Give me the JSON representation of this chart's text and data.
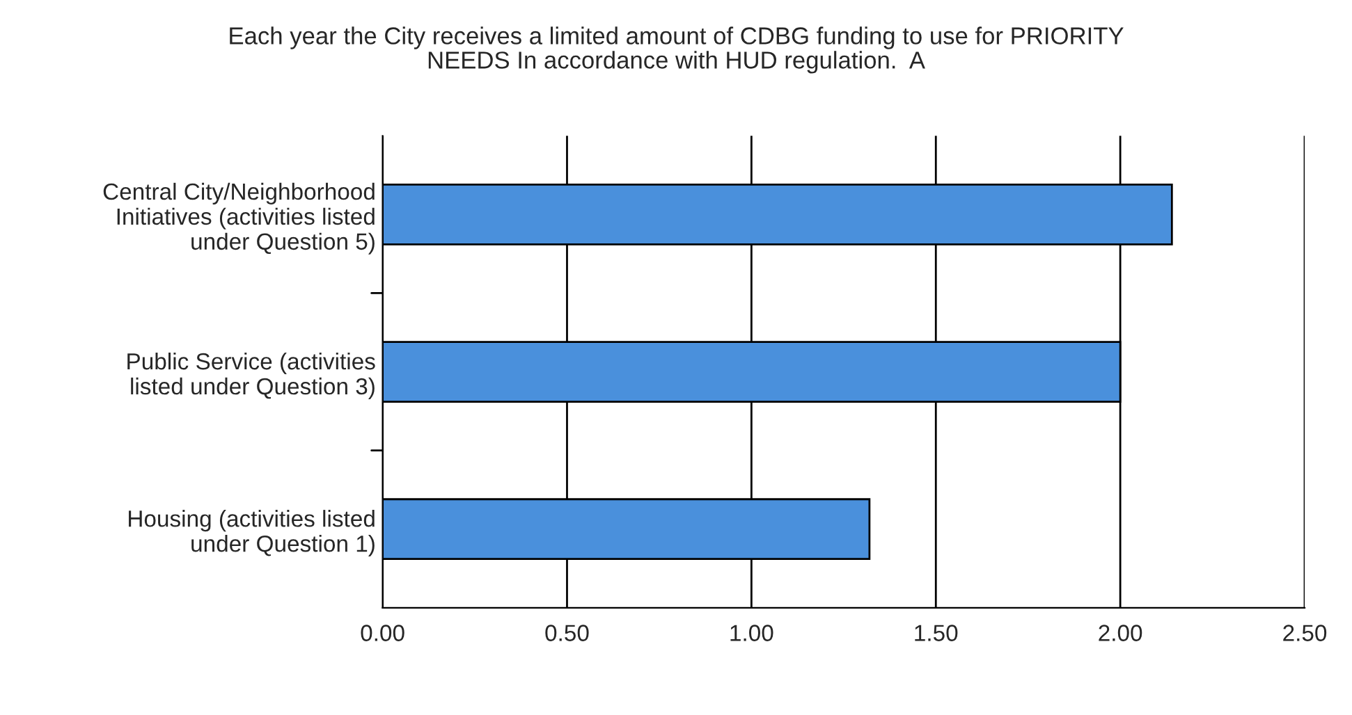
{
  "chart_data": {
    "type": "bar",
    "orientation": "horizontal",
    "title": "Each year the City receives a limited amount of CDBG funding to use for PRIORITY\nNEEDS In accordance with HUD regulation.  A",
    "categories": [
      "Central City/Neighborhood\nInitiatives (activities listed\nunder Question 5)",
      "Public Service (activities\nlisted under Question 3)",
      "Housing (activities listed\nunder Question 1)"
    ],
    "values": [
      2.14,
      2.0,
      1.32
    ],
    "color": "#4a90dc",
    "xlim": [
      0,
      2.5
    ],
    "xticks": [
      {
        "value": 0,
        "label": "0.00"
      },
      {
        "value": 0.5,
        "label": "0.50"
      },
      {
        "value": 1.0,
        "label": "1.00"
      },
      {
        "value": 1.5,
        "label": "1.50"
      },
      {
        "value": 2.0,
        "label": "2.00"
      },
      {
        "value": 2.5,
        "label": "2.50"
      }
    ],
    "grid": "x",
    "legend": false
  }
}
